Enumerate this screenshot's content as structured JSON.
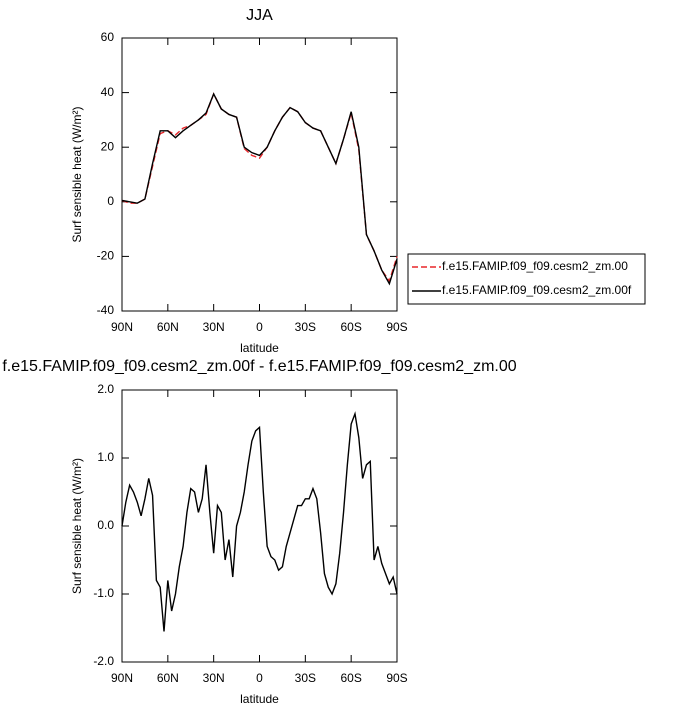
{
  "chart_data": [
    {
      "type": "line",
      "title": "JJA",
      "xlabel": "latitude",
      "ylabel": "Surf sensible heat (W/m²)",
      "x": [
        90,
        85,
        80,
        75,
        70,
        65,
        60,
        55,
        50,
        45,
        40,
        35,
        30,
        25,
        20,
        15,
        10,
        5,
        0,
        -5,
        -10,
        -15,
        -20,
        -25,
        -30,
        -35,
        -40,
        -45,
        -50,
        -55,
        -60,
        -65,
        -70,
        -75,
        -80,
        -85,
        -90
      ],
      "xlim": [
        90,
        -90
      ],
      "xticks": [
        {
          "value": 90,
          "label": "90N"
        },
        {
          "value": 60,
          "label": "60N"
        },
        {
          "value": 30,
          "label": "30N"
        },
        0,
        {
          "value": -30,
          "label": "30S"
        },
        {
          "value": -60,
          "label": "60S"
        },
        {
          "value": -90,
          "label": "90S"
        }
      ],
      "ylim": [
        -40,
        60
      ],
      "yticks": [
        -40,
        -20,
        0,
        20,
        40,
        60
      ],
      "legend": "right",
      "series": [
        {
          "name": "f.e15.FAMIP.f09_f09.cesm2_zm.00",
          "color": "#e8262a",
          "style": "dashed",
          "values": [
            0.5,
            -0.5,
            -0.5,
            1,
            13,
            25,
            26,
            24.5,
            27,
            28,
            30,
            32,
            39.5,
            34,
            32,
            31,
            19.5,
            17,
            16,
            20,
            26,
            31,
            34.5,
            33,
            29,
            27,
            26,
            20,
            14,
            23,
            32.5,
            19,
            -12,
            -18,
            -25,
            -29,
            -20
          ]
        },
        {
          "name": "f.e15.FAMIP.f09_f09.cesm2_zm.00f",
          "color": "#000000",
          "style": "solid",
          "values": [
            0.5,
            0,
            -0.5,
            1,
            14,
            26,
            26,
            23.5,
            26,
            28,
            30,
            32.5,
            39.5,
            34,
            32,
            31,
            20,
            18,
            17,
            20,
            26,
            31,
            34.5,
            33,
            29,
            27,
            26,
            20,
            14,
            23,
            33,
            20,
            -12,
            -18,
            -25,
            -30,
            -21
          ]
        }
      ]
    },
    {
      "type": "line",
      "title": "f.e15.FAMIP.f09_f09.cesm2_zm.00f - f.e15.FAMIP.f09_f09.cesm2_zm.00",
      "xlabel": "latitude",
      "ylabel": "Surf sensible heat (W/m²)",
      "x": [
        90,
        87.5,
        85,
        82.5,
        80,
        77.5,
        75,
        72.5,
        70,
        67.5,
        65,
        62.5,
        60,
        57.5,
        55,
        52.5,
        50,
        47.5,
        45,
        42.5,
        40,
        37.5,
        35,
        32.5,
        30,
        27.5,
        25,
        22.5,
        20,
        17.5,
        15,
        12.5,
        10,
        7.5,
        5,
        2.5,
        0,
        -2.5,
        -5,
        -7.5,
        -10,
        -12.5,
        -15,
        -17.5,
        -20,
        -22.5,
        -25,
        -27.5,
        -30,
        -32.5,
        -35,
        -37.5,
        -40,
        -42.5,
        -45,
        -47.5,
        -50,
        -52.5,
        -55,
        -57.5,
        -60,
        -62.5,
        -65,
        -67.5,
        -70,
        -72.5,
        -75,
        -77.5,
        -80,
        -82.5,
        -85,
        -87.5,
        -90
      ],
      "xlim": [
        90,
        -90
      ],
      "xticks": [
        {
          "value": 90,
          "label": "90N"
        },
        {
          "value": 60,
          "label": "60N"
        },
        {
          "value": 30,
          "label": "30N"
        },
        0,
        {
          "value": -30,
          "label": "30S"
        },
        {
          "value": -60,
          "label": "60S"
        },
        {
          "value": -90,
          "label": "90S"
        }
      ],
      "ylim": [
        -2,
        2
      ],
      "yticks": [
        {
          "value": -2,
          "label": "-2.0"
        },
        {
          "value": -1,
          "label": "-1.0"
        },
        {
          "value": 0,
          "label": "0.0"
        },
        {
          "value": 1,
          "label": "1.0"
        },
        {
          "value": 2,
          "label": "2.0"
        }
      ],
      "series": [
        {
          "color": "#000000",
          "style": "solid",
          "values": [
            0,
            0.35,
            0.6,
            0.5,
            0.35,
            0.15,
            0.4,
            0.7,
            0.45,
            -0.8,
            -0.9,
            -1.55,
            -0.8,
            -1.25,
            -1,
            -0.6,
            -0.3,
            0.2,
            0.55,
            0.5,
            0.2,
            0.4,
            0.9,
            0.2,
            -0.4,
            0.3,
            0.2,
            -0.5,
            -0.2,
            -0.75,
            0,
            0.2,
            0.5,
            0.9,
            1.25,
            1.4,
            1.45,
            0.5,
            -0.3,
            -0.45,
            -0.5,
            -0.65,
            -0.6,
            -0.3,
            -0.1,
            0.1,
            0.3,
            0.3,
            0.4,
            0.4,
            0.55,
            0.4,
            -0.1,
            -0.7,
            -0.9,
            -1,
            -0.85,
            -0.4,
            0.2,
            0.9,
            1.5,
            1.65,
            1.3,
            0.7,
            0.9,
            0.95,
            -0.5,
            -0.3,
            -0.55,
            -0.7,
            -0.85,
            -0.75,
            -1
          ]
        }
      ]
    }
  ]
}
